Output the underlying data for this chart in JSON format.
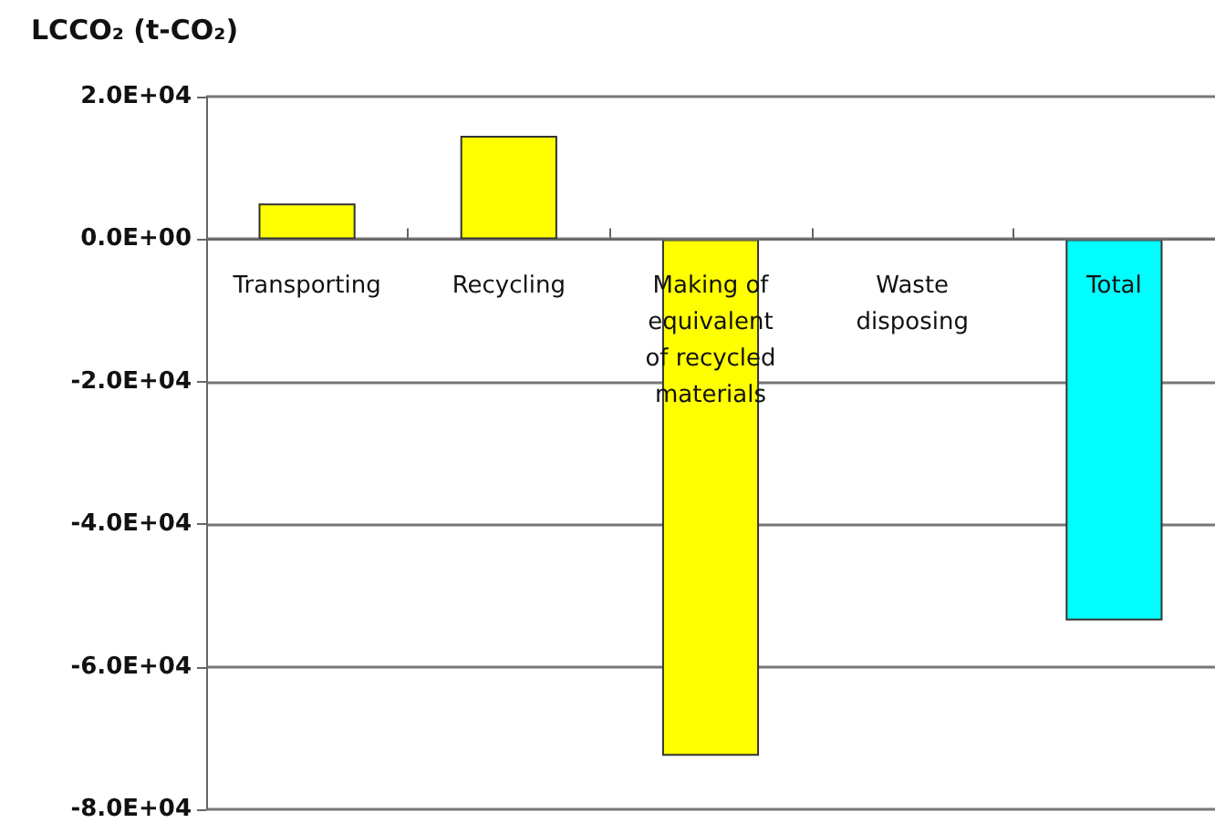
{
  "chart_data": {
    "type": "bar",
    "ylabel": "LCCO₂ (t-CO₂)",
    "categories": [
      "Transporting",
      "Recycling",
      "Making of\nequivalent\nof recycled\nmaterials",
      "Waste\ndisposing",
      "Total"
    ],
    "values": [
      5000,
      14500,
      -72500,
      0,
      -53500
    ],
    "colors": [
      "#ffff00",
      "#ffff00",
      "#ffff00",
      "#ffff00",
      "#00ffff"
    ],
    "ylim": [
      -80000,
      20000
    ],
    "yticks": [
      {
        "value": 20000,
        "label": "2.0E+04"
      },
      {
        "value": 0,
        "label": "0.0E+00"
      },
      {
        "value": -20000,
        "label": "-2.0E+04"
      },
      {
        "value": -40000,
        "label": "-4.0E+04"
      },
      {
        "value": -60000,
        "label": "-6.0E+04"
      },
      {
        "value": -80000,
        "label": "-8.0E+04"
      }
    ],
    "grid": "y"
  }
}
